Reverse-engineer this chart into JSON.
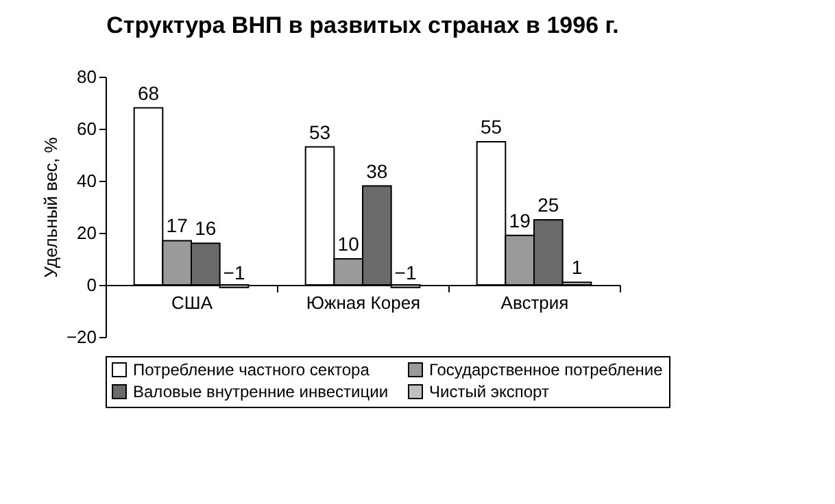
{
  "chart_data": {
    "type": "bar",
    "title": "Структура ВНП в развитых странах в 1996 г.",
    "ylabel": "Удельный вес, %",
    "categories": [
      "США",
      "Южная Корея",
      "Австрия"
    ],
    "series": [
      {
        "name": "Потребление частного сектора",
        "color": "#ffffff",
        "values": [
          68,
          53,
          55
        ]
      },
      {
        "name": "Государственное потребление",
        "color": "#9a9a9a",
        "values": [
          17,
          10,
          19
        ]
      },
      {
        "name": "Валовые внутренние инвестиции",
        "color": "#6a6a6a",
        "values": [
          16,
          38,
          25
        ]
      },
      {
        "name": "Чистый экспорт",
        "color": "#c0c0c0",
        "values": [
          -1,
          -1,
          1
        ]
      }
    ],
    "ylim": [
      -20,
      80
    ],
    "yticks": [
      -20,
      0,
      20,
      40,
      60,
      80
    ],
    "data_labels": true,
    "legend": "bottom",
    "grid": false
  }
}
